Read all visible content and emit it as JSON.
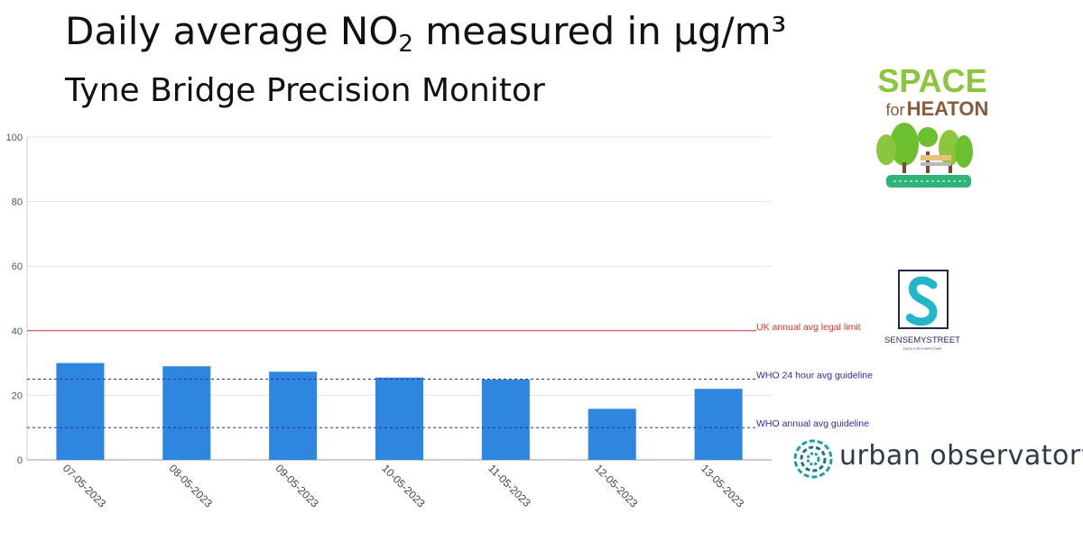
{
  "header": {
    "title_main": "Daily average NO",
    "title_sub": "2",
    "title_tail": " measured in μg/m³",
    "subtitle": "Tyne Bridge Precision Monitor"
  },
  "chart_data": {
    "type": "bar",
    "categories": [
      "07-05-2023",
      "08-05-2023",
      "09-05-2023",
      "10-05-2023",
      "11-05-2023",
      "12-05-2023",
      "13-05-2023"
    ],
    "values": [
      30,
      29,
      27.3,
      25.5,
      24.9,
      15.8,
      22
    ],
    "ylim": [
      0,
      100
    ],
    "yticks": [
      0,
      20,
      40,
      60,
      80,
      100
    ],
    "grid": true,
    "bar_color": "#2e86de",
    "reference_lines": [
      {
        "label": "UK annual avg legal limit",
        "value": 40,
        "color": "#e03030",
        "style": "solid"
      },
      {
        "label": "WHO 24 hour avg guideline",
        "value": 25,
        "color": "#2b2bb0",
        "style": "dashed"
      },
      {
        "label": "WHO annual avg guideline",
        "value": 10,
        "color": "#2b2bb0",
        "style": "dashed"
      }
    ]
  },
  "logos": {
    "space_for_heaton_1": "SPACE",
    "space_for_heaton_2": "for",
    "space_for_heaton_3": "HEATON",
    "sensemystreet": "SENSEMYSTREET",
    "sensemystreet_tagline": "DATA FOR EVERYONE",
    "urban_observatory": "urban observatory"
  }
}
